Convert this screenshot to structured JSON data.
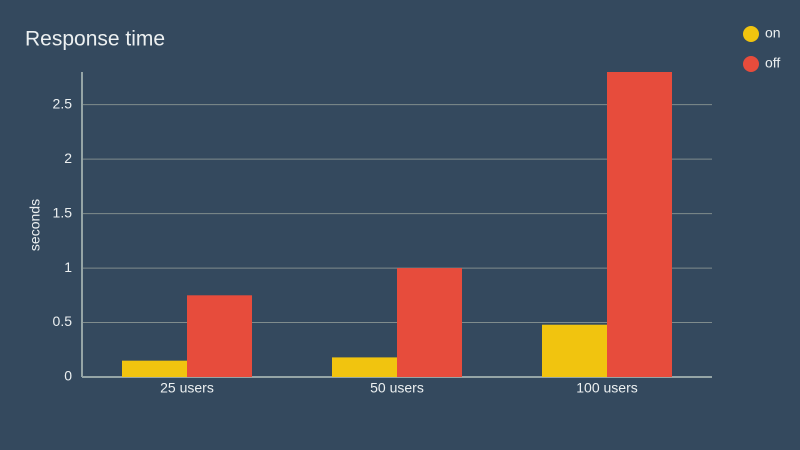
{
  "chart_data": {
    "type": "bar",
    "title": "Response time",
    "y_label": "seconds",
    "categories": [
      "25 users",
      "50 users",
      "100 users"
    ],
    "series": [
      {
        "name": "on",
        "color": "#f1c40f",
        "values": [
          0.15,
          0.18,
          0.48
        ]
      },
      {
        "name": "off",
        "color": "#e74c3c",
        "values": [
          0.75,
          1.0,
          2.8
        ]
      }
    ],
    "ylim": [
      0,
      2.8
    ],
    "yticks": [
      0,
      0.5,
      1,
      1.5,
      2,
      2.5
    ],
    "grid": true,
    "legend": "top-right"
  }
}
